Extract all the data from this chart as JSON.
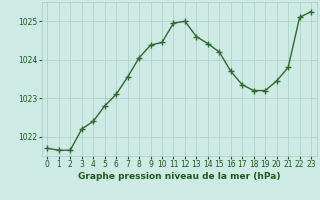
{
  "hours": [
    0,
    1,
    2,
    3,
    4,
    5,
    6,
    7,
    8,
    9,
    10,
    11,
    12,
    13,
    14,
    15,
    16,
    17,
    18,
    19,
    20,
    21,
    22,
    23
  ],
  "pressure": [
    1021.7,
    1021.65,
    1021.65,
    1022.2,
    1022.4,
    1022.8,
    1023.1,
    1023.55,
    1024.05,
    1024.38,
    1024.45,
    1024.95,
    1025.0,
    1024.6,
    1024.42,
    1024.2,
    1023.7,
    1023.35,
    1023.2,
    1023.2,
    1023.45,
    1023.8,
    1025.1,
    1025.25
  ],
  "line_color": "#2d6a2d",
  "marker": "+",
  "marker_size": 4,
  "marker_lw": 1.0,
  "bg_color": "#ceeae4",
  "grid_color": "#aaccc6",
  "xlabel": "Graphe pression niveau de la mer (hPa)",
  "xlabel_color": "#1a5c1a",
  "tick_color": "#1a5c1a",
  "ylim": [
    1021.5,
    1025.5
  ],
  "yticks": [
    1022,
    1023,
    1024,
    1025
  ],
  "xlim": [
    -0.5,
    23.5
  ],
  "xticks": [
    0,
    1,
    2,
    3,
    4,
    5,
    6,
    7,
    8,
    9,
    10,
    11,
    12,
    13,
    14,
    15,
    16,
    17,
    18,
    19,
    20,
    21,
    22,
    23
  ],
  "tick_fontsize": 5.5,
  "xlabel_fontsize": 6.5,
  "linewidth": 1.0
}
